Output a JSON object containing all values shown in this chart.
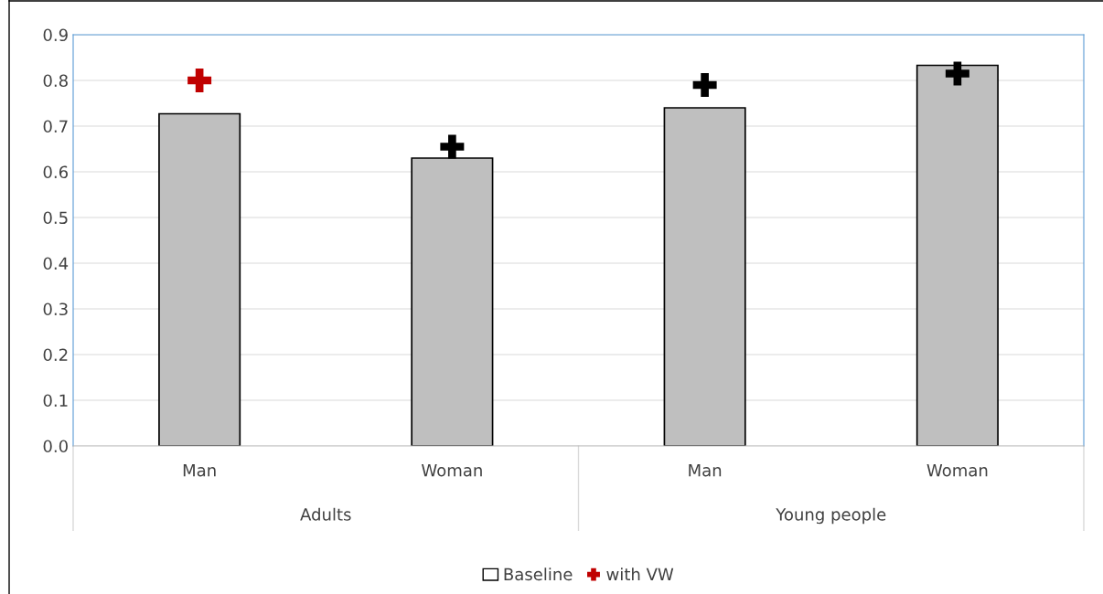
{
  "chart_data": {
    "type": "bar",
    "categories": [
      "Man",
      "Woman",
      "Man",
      "Woman"
    ],
    "series": [
      {
        "name": "Baseline",
        "color": "#bfbfbf",
        "values": [
          0.727,
          0.63,
          0.74,
          0.833
        ]
      },
      {
        "name": "with VW",
        "type": "scatter",
        "marker": "cross",
        "color": "#c00000",
        "colors": [
          "#c00000",
          "#000000",
          "#000000",
          "#000000"
        ],
        "values": [
          0.8,
          0.655,
          0.79,
          0.815
        ]
      }
    ],
    "annotations": [
      "Adults",
      "Young people"
    ],
    "ylim": [
      0,
      0.9
    ],
    "yticks": [
      {
        "value": 0,
        "label": "0.0"
      },
      {
        "value": 0.1,
        "label": "0.1"
      },
      {
        "value": 0.2,
        "label": "0.2"
      },
      {
        "value": 0.3,
        "label": "0.3"
      },
      {
        "value": 0.4,
        "label": "0.4"
      },
      {
        "value": 0.5,
        "label": "0.5"
      },
      {
        "value": 0.6,
        "label": "0.6"
      },
      {
        "value": 0.7,
        "label": "0.7"
      },
      {
        "value": 0.8,
        "label": "0.8"
      },
      {
        "value": 0.9,
        "label": "0.9"
      }
    ],
    "grid": "y",
    "legend": "bottom"
  }
}
